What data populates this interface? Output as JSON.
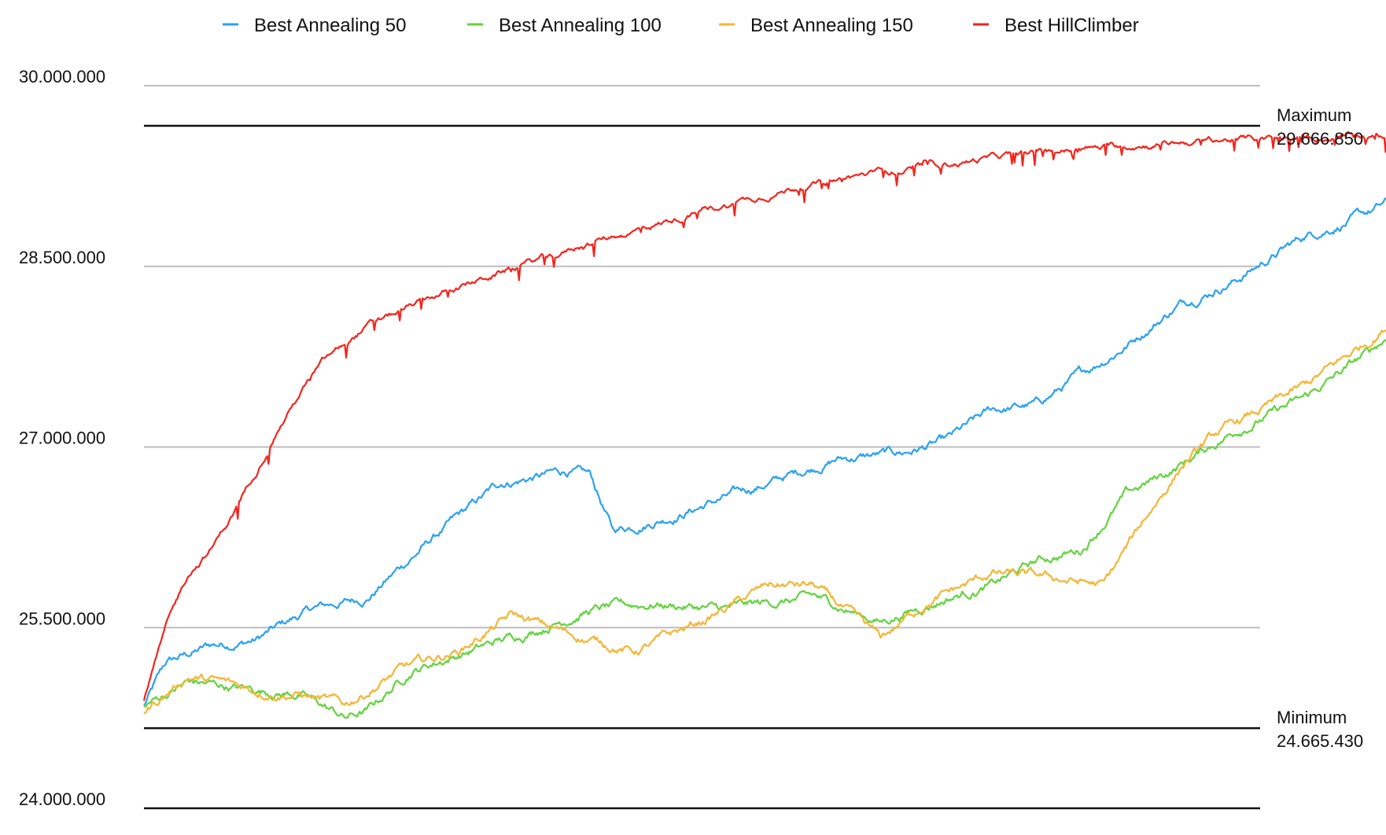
{
  "chart_data": {
    "type": "line",
    "title": "",
    "xlabel": "",
    "ylabel": "",
    "ylim": [
      24000000,
      30000000
    ],
    "y_ticks": [
      "24.000.000",
      "25.500.000",
      "27.000.000",
      "28.500.000",
      "30.000.000"
    ],
    "y_tick_values": [
      24000000,
      25500000,
      27000000,
      28500000,
      30000000
    ],
    "grid": true,
    "legend_position": "top",
    "x_count": 1000,
    "series": [
      {
        "name": "Best Annealing 50",
        "color": "#2aa1f2",
        "x": [
          0,
          20,
          60,
          100,
          150,
          200,
          260,
          320,
          380,
          400,
          420,
          480,
          560,
          620,
          680,
          720,
          760,
          800,
          840,
          880,
          930,
          980,
          1040,
          1100,
          1150
        ],
        "values": [
          24850000,
          25200000,
          25350000,
          25400000,
          25650000,
          25750000,
          26250000,
          26700000,
          26800000,
          26750000,
          26300000,
          26450000,
          26700000,
          26900000,
          26950000,
          27050000,
          27300000,
          27350000,
          27600000,
          27850000,
          28200000,
          28400000,
          28750000,
          28950000,
          29200000
        ]
      },
      {
        "name": "Best Annealing 100",
        "color": "#62d33f",
        "x": [
          0,
          40,
          100,
          140,
          180,
          200,
          240,
          290,
          340,
          400,
          460,
          520,
          600,
          660,
          720,
          760,
          800,
          840,
          880,
          920,
          980,
          1040,
          1100,
          1150
        ],
        "values": [
          24850000,
          25050000,
          24980000,
          24950000,
          24750000,
          24800000,
          25150000,
          25300000,
          25450000,
          25650000,
          25700000,
          25650000,
          25750000,
          25550000,
          25750000,
          25850000,
          26050000,
          26150000,
          26600000,
          26800000,
          27150000,
          27400000,
          27800000,
          28200000
        ]
      },
      {
        "name": "Best Annealing 150",
        "color": "#f5b534",
        "x": [
          0,
          40,
          100,
          140,
          180,
          230,
          280,
          330,
          380,
          440,
          500,
          560,
          600,
          620,
          660,
          700,
          760,
          820,
          860,
          900,
          930,
          960,
          1000,
          1040,
          1100,
          1150
        ],
        "values": [
          24800000,
          25100000,
          24980000,
          24950000,
          24850000,
          25150000,
          25300000,
          25600000,
          25450000,
          25300000,
          25550000,
          25850000,
          25850000,
          25700000,
          25400000,
          25700000,
          25950000,
          25900000,
          25850000,
          26450000,
          26850000,
          27100000,
          27300000,
          27500000,
          27900000,
          28300000
        ]
      },
      {
        "name": "Best HillClimber",
        "color": "#f4241d",
        "x": [
          0,
          20,
          40,
          60,
          80,
          100,
          120,
          140,
          160,
          180,
          200,
          260,
          320,
          400,
          460,
          520,
          580,
          640,
          720,
          800,
          880,
          960,
          1040,
          1120,
          1200,
          1280,
          1350,
          1440
        ],
        "values": [
          24900000,
          25500000,
          25950000,
          26150000,
          26450000,
          26800000,
          27150000,
          27450000,
          27700000,
          27850000,
          28000000,
          28250000,
          28450000,
          28700000,
          28850000,
          29000000,
          29150000,
          29250000,
          29350000,
          29450000,
          29500000,
          29550000,
          29560000,
          29580000,
          29600000,
          29620000,
          29640000,
          29650000
        ]
      }
    ],
    "reference_lines": [
      {
        "label": "Maximum",
        "value_text": "29.666.850",
        "value": 29666850
      },
      {
        "label": "Minimum",
        "value_text": "24.665.430",
        "value": 24665430
      }
    ]
  }
}
